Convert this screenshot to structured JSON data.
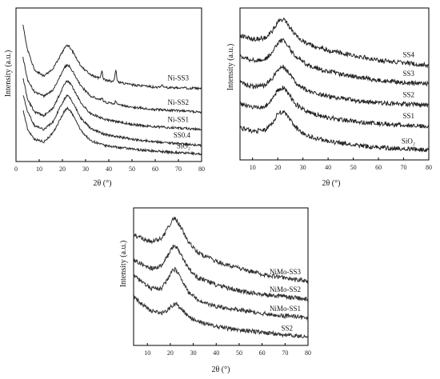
{
  "chart_data": [
    {
      "type": "line",
      "xlabel": "2θ (°)",
      "ylabel": "Intensity (a.u.)",
      "xlim": [
        0,
        80
      ],
      "xticks": [
        0,
        10,
        20,
        30,
        40,
        50,
        60,
        70,
        80
      ],
      "grid": false,
      "series": [
        {
          "name": "SiO₂",
          "x": [
            3,
            5,
            8,
            12,
            16,
            19,
            21,
            22,
            23,
            25,
            28,
            32,
            38,
            50,
            60,
            80
          ],
          "values": [
            1.8,
            1.0,
            0.6,
            0.5,
            0.85,
            1.4,
            1.75,
            1.85,
            1.8,
            1.5,
            0.95,
            0.55,
            0.35,
            0.2,
            0.12,
            0.0
          ],
          "peaks": []
        },
        {
          "name": "SS0.4",
          "x": [
            3,
            5,
            8,
            12,
            16,
            19,
            21,
            22,
            23,
            25,
            28,
            32,
            38,
            50,
            60,
            80
          ],
          "values": [
            2.4,
            1.7,
            1.15,
            1.0,
            1.3,
            1.9,
            2.25,
            2.35,
            2.3,
            2.0,
            1.45,
            1.05,
            0.8,
            0.6,
            0.5,
            0.35
          ],
          "peaks": []
        },
        {
          "name": "Ni-SS1",
          "x": [
            3,
            5,
            8,
            12,
            16,
            19,
            21,
            22,
            23,
            25,
            28,
            32,
            38,
            50,
            60,
            80
          ],
          "values": [
            3.1,
            2.2,
            1.7,
            1.55,
            1.85,
            2.45,
            2.85,
            2.95,
            2.9,
            2.6,
            2.05,
            1.65,
            1.4,
            1.2,
            1.1,
            1.0
          ],
          "peaks": []
        },
        {
          "name": "Ni-SS2",
          "x": [
            3,
            5,
            8,
            12,
            16,
            19,
            21,
            22,
            23,
            25,
            28,
            32,
            38,
            50,
            60,
            80
          ],
          "values": [
            3.9,
            3.0,
            2.5,
            2.35,
            2.6,
            3.15,
            3.5,
            3.6,
            3.55,
            3.25,
            2.75,
            2.35,
            2.1,
            1.9,
            1.8,
            1.7
          ],
          "peaks": [
            [
              37,
              0.12
            ],
            [
              43,
              0.12
            ]
          ]
        },
        {
          "name": "Ni-SS3",
          "x": [
            3,
            5,
            8,
            12,
            16,
            19,
            21,
            22,
            23,
            25,
            28,
            32,
            38,
            50,
            60,
            80
          ],
          "values": [
            5.2,
            4.2,
            3.4,
            3.15,
            3.45,
            3.95,
            4.3,
            4.4,
            4.35,
            4.05,
            3.55,
            3.2,
            3.0,
            2.8,
            2.7,
            2.65
          ],
          "peaks": [
            [
              37,
              0.3
            ],
            [
              43,
              0.45
            ],
            [
              63,
              0.12
            ]
          ]
        }
      ],
      "series_labels": [
        "SiO₂",
        "SS0.4",
        "Ni-SS1",
        "Ni-SS2",
        "Ni-SS3"
      ]
    },
    {
      "type": "line",
      "xlabel": "2θ (°)",
      "ylabel": "Intensity (a.u.)",
      "xlim": [
        5,
        80
      ],
      "xticks": [
        10,
        20,
        30,
        40,
        50,
        60,
        70,
        80
      ],
      "grid": false,
      "series": [
        {
          "name": "SiO₂",
          "x": [
            5,
            10,
            15,
            18,
            20,
            22,
            24,
            27,
            32,
            40,
            50,
            60,
            70,
            80
          ],
          "values": [
            1.3,
            1.15,
            1.2,
            1.5,
            1.85,
            1.95,
            1.75,
            1.3,
            0.95,
            0.75,
            0.6,
            0.5,
            0.45,
            0.4
          ],
          "peaks": []
        },
        {
          "name": "SS1",
          "x": [
            5,
            10,
            15,
            18,
            20,
            22,
            24,
            27,
            32,
            40,
            50,
            60,
            70,
            80
          ],
          "values": [
            2.25,
            2.1,
            2.15,
            2.45,
            2.8,
            2.9,
            2.7,
            2.25,
            1.9,
            1.7,
            1.55,
            1.45,
            1.4,
            1.35
          ],
          "peaks": []
        },
        {
          "name": "SS2",
          "x": [
            5,
            10,
            15,
            18,
            20,
            22,
            24,
            27,
            32,
            40,
            50,
            60,
            70,
            80
          ],
          "values": [
            3.1,
            2.95,
            3.0,
            3.3,
            3.65,
            3.75,
            3.55,
            3.1,
            2.75,
            2.55,
            2.4,
            2.3,
            2.25,
            2.2
          ],
          "peaks": []
        },
        {
          "name": "SS3",
          "x": [
            5,
            10,
            15,
            18,
            20,
            22,
            24,
            27,
            32,
            40,
            50,
            60,
            70,
            80
          ],
          "values": [
            4.15,
            4.0,
            4.05,
            4.35,
            4.7,
            4.8,
            4.6,
            4.15,
            3.8,
            3.55,
            3.35,
            3.2,
            3.1,
            3.05
          ],
          "peaks": []
        },
        {
          "name": "SS4",
          "x": [
            5,
            10,
            15,
            18,
            20,
            22,
            24,
            27,
            32,
            40,
            50,
            60,
            70,
            80
          ],
          "values": [
            5.0,
            4.85,
            4.9,
            5.2,
            5.55,
            5.65,
            5.45,
            5.0,
            4.65,
            4.4,
            4.2,
            4.0,
            3.9,
            3.8
          ],
          "peaks": []
        }
      ],
      "series_labels": [
        "SiO₂",
        "SS1",
        "SS2",
        "SS3",
        "SS4"
      ]
    },
    {
      "type": "line",
      "xlabel": "2θ (°)",
      "ylabel": "Intensity (a.u.)",
      "xlim": [
        4,
        80
      ],
      "xticks": [
        10,
        20,
        30,
        40,
        50,
        60,
        70,
        80
      ],
      "grid": false,
      "series": [
        {
          "name": "SS2",
          "x": [
            4,
            8,
            12,
            16,
            19,
            21,
            22,
            23,
            25,
            28,
            32,
            40,
            50,
            60,
            70,
            80
          ],
          "values": [
            1.75,
            1.4,
            1.15,
            1.05,
            1.2,
            1.4,
            1.45,
            1.4,
            1.2,
            0.9,
            0.7,
            0.5,
            0.35,
            0.25,
            0.15,
            0.05
          ],
          "peaks": []
        },
        {
          "name": "NiMo-SS1",
          "x": [
            4,
            8,
            12,
            16,
            19,
            21,
            22,
            23,
            25,
            28,
            32,
            40,
            50,
            60,
            70,
            80
          ],
          "values": [
            2.65,
            2.35,
            2.1,
            2.1,
            2.5,
            2.85,
            2.9,
            2.8,
            2.45,
            1.95,
            1.6,
            1.35,
            1.2,
            1.05,
            0.95,
            0.85
          ],
          "peaks": []
        },
        {
          "name": "NiMo-SS2",
          "x": [
            4,
            8,
            12,
            16,
            19,
            21,
            22,
            23,
            25,
            28,
            32,
            40,
            50,
            60,
            70,
            80
          ],
          "values": [
            3.3,
            3.1,
            2.95,
            3.05,
            3.5,
            3.85,
            3.9,
            3.8,
            3.45,
            2.95,
            2.55,
            2.25,
            2.0,
            1.85,
            1.75,
            1.65
          ],
          "peaks": []
        },
        {
          "name": "NiMo-SS3",
          "x": [
            4,
            8,
            12,
            16,
            19,
            21,
            22,
            23,
            25,
            28,
            32,
            40,
            50,
            60,
            70,
            80
          ],
          "values": [
            4.35,
            4.2,
            4.1,
            4.2,
            4.65,
            5.0,
            5.05,
            4.95,
            4.6,
            4.05,
            3.6,
            3.25,
            2.95,
            2.7,
            2.55,
            2.4
          ],
          "peaks": []
        }
      ],
      "series_labels": [
        "SS2",
        "NiMo-SS1",
        "NiMo-SS2",
        "NiMo-SS3"
      ]
    }
  ]
}
